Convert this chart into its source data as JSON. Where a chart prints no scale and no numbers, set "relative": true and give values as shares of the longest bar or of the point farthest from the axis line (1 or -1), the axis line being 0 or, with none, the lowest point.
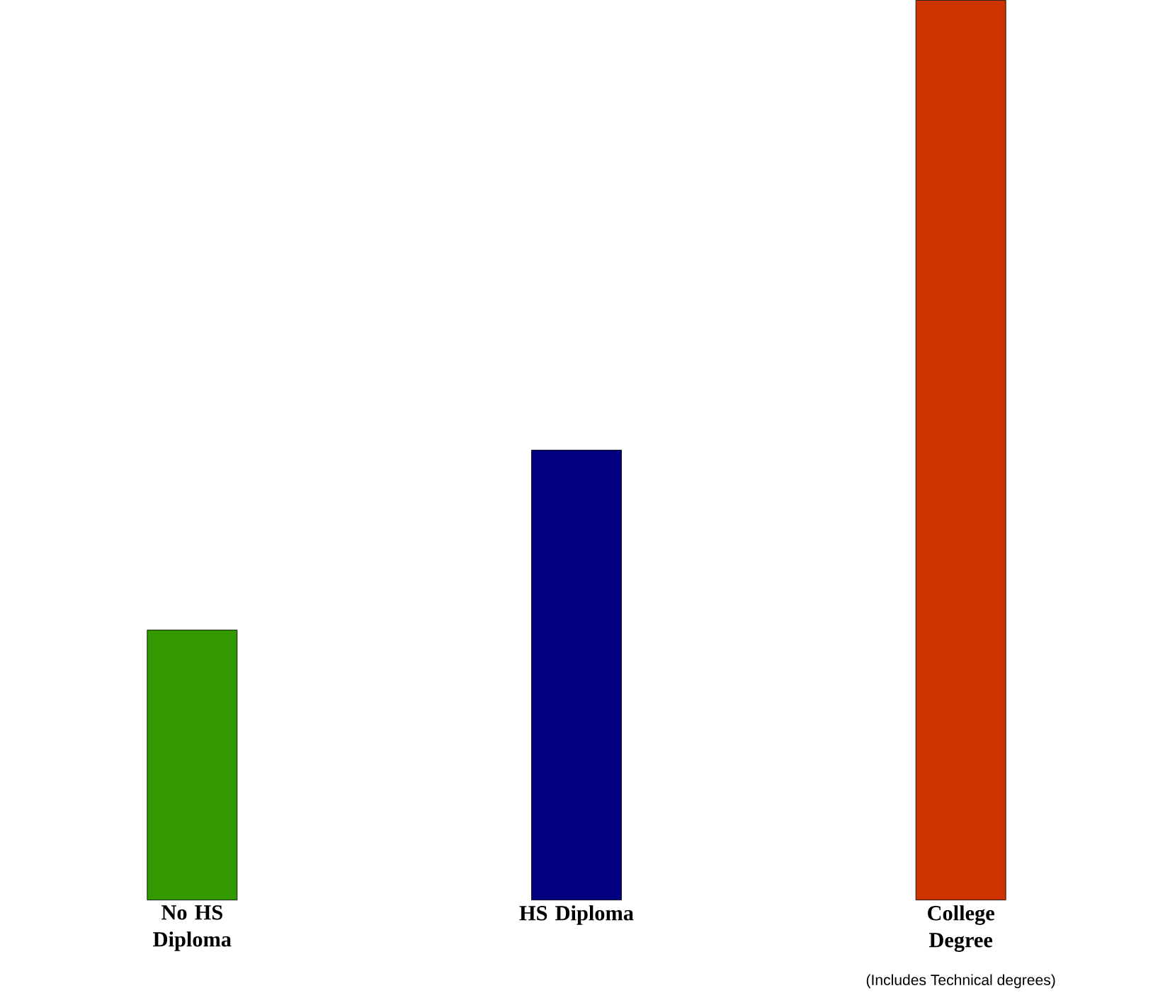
{
  "chart_data": {
    "type": "bar",
    "relative": true,
    "categories": [
      "No HS Diploma",
      "HS Diploma",
      "College Degree"
    ],
    "values": [
      0.3,
      0.5,
      1
    ],
    "colors": [
      "#339900",
      "#000080",
      "#cc3300"
    ],
    "annotations": [
      "(Includes Technical degrees)"
    ]
  }
}
